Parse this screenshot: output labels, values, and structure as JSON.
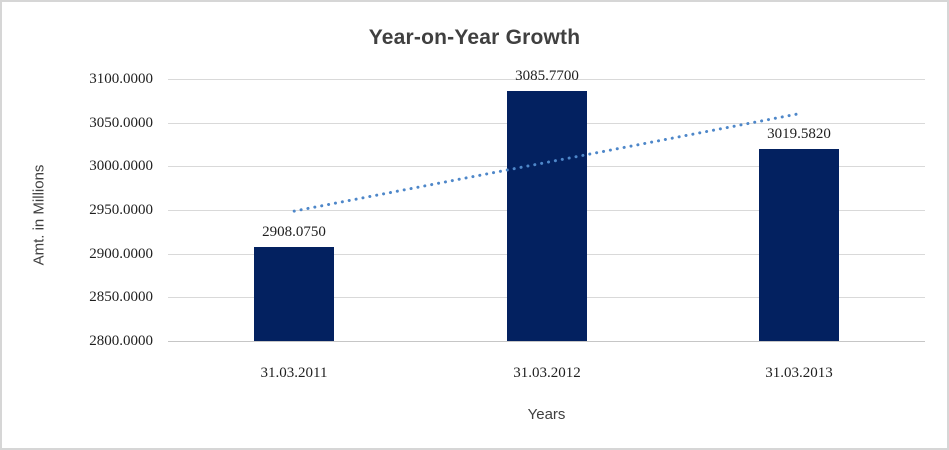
{
  "chart_data": {
    "type": "bar",
    "title": "Year-on-Year Growth",
    "xlabel": "Years",
    "ylabel": "Amt. in Millions",
    "categories": [
      "31.03.2011",
      "31.03.2012",
      "31.03.2013"
    ],
    "values": [
      2908.075,
      3085.77,
      3019.582
    ],
    "data_labels": [
      "2908.0750",
      "3085.7700",
      "3019.5820"
    ],
    "ytick_labels": [
      "3100.0000",
      "3050.0000",
      "3000.0000",
      "2950.0000",
      "2900.0000",
      "2850.0000",
      "2800.0000"
    ],
    "ylim": [
      2800,
      3100
    ],
    "grid": true,
    "legend": "none",
    "colors": {
      "bar": "#032160",
      "trendline": "#4e87c9",
      "gridline": "#d9d9d9",
      "title_text": "#404040",
      "tick_text": "#1f1f1f",
      "chart_border": "#d6d6d6"
    },
    "trendline": {
      "type": "linear",
      "style": "round-dot"
    }
  }
}
